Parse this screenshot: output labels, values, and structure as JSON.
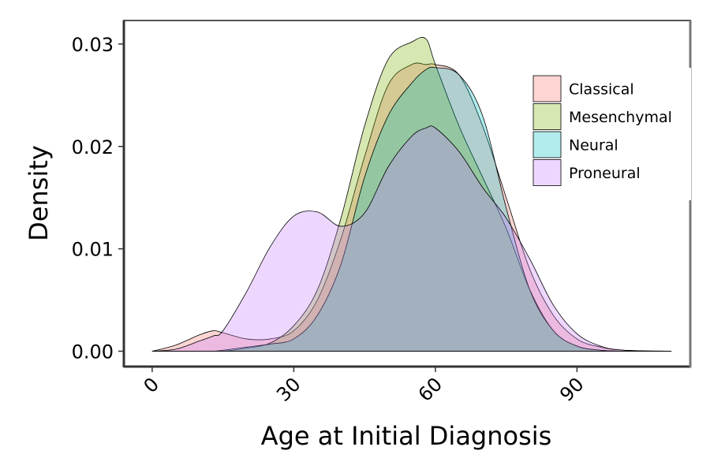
{
  "chart_data": {
    "type": "area",
    "xlabel": "Age at Initial Diagnosis",
    "ylabel": "Density",
    "xlim": [
      -6,
      114
    ],
    "ylim": [
      -0.0015,
      0.0323
    ],
    "x_ticks": [
      0,
      30,
      60,
      90
    ],
    "x_tick_labels": [
      "0",
      "30",
      "60",
      "90"
    ],
    "y_ticks": [
      0.0,
      0.01,
      0.02,
      0.03
    ],
    "y_tick_labels": [
      "0.00",
      "0.01",
      "0.02",
      "0.03"
    ],
    "grid": false,
    "legend_position": "top-right",
    "x": [
      0,
      5,
      10,
      13,
      15,
      20,
      25,
      30,
      35,
      40,
      45,
      50,
      55,
      58,
      60,
      65,
      70,
      75,
      80,
      85,
      90,
      95,
      100,
      110
    ],
    "series": [
      {
        "name": "Classical",
        "color": "#f8766d",
        "values": [
          0,
          0.0006,
          0.0016,
          0.002,
          0.0018,
          0.0012,
          0.0012,
          0.002,
          0.005,
          0.011,
          0.019,
          0.026,
          0.028,
          0.028,
          0.028,
          0.027,
          0.022,
          0.015,
          0.008,
          0.0035,
          0.0012,
          0.0004,
          0.0001,
          0
        ]
      },
      {
        "name": "Mesenchymal",
        "color": "#7cae00",
        "values": [
          0,
          0,
          0,
          0,
          0,
          0.0003,
          0.0008,
          0.0025,
          0.006,
          0.013,
          0.022,
          0.0285,
          0.0302,
          0.0305,
          0.028,
          0.022,
          0.017,
          0.012,
          0.006,
          0.002,
          0.0005,
          0.0001,
          0,
          0
        ]
      },
      {
        "name": "Neural",
        "color": "#00bfc4",
        "values": [
          0,
          0,
          0,
          0,
          0.0001,
          0.0004,
          0.0007,
          0.0012,
          0.0035,
          0.0085,
          0.017,
          0.023,
          0.0262,
          0.0275,
          0.0277,
          0.027,
          0.023,
          0.014,
          0.006,
          0.002,
          0.0005,
          0.0001,
          0,
          0
        ]
      },
      {
        "name": "Proneural",
        "color": "#c77cff",
        "values": [
          0,
          0.0002,
          0.001,
          0.0015,
          0.002,
          0.0058,
          0.0102,
          0.0132,
          0.0136,
          0.0122,
          0.0135,
          0.018,
          0.021,
          0.0218,
          0.0218,
          0.0195,
          0.016,
          0.013,
          0.009,
          0.0045,
          0.0017,
          0.0005,
          0.0001,
          0
        ]
      }
    ]
  }
}
